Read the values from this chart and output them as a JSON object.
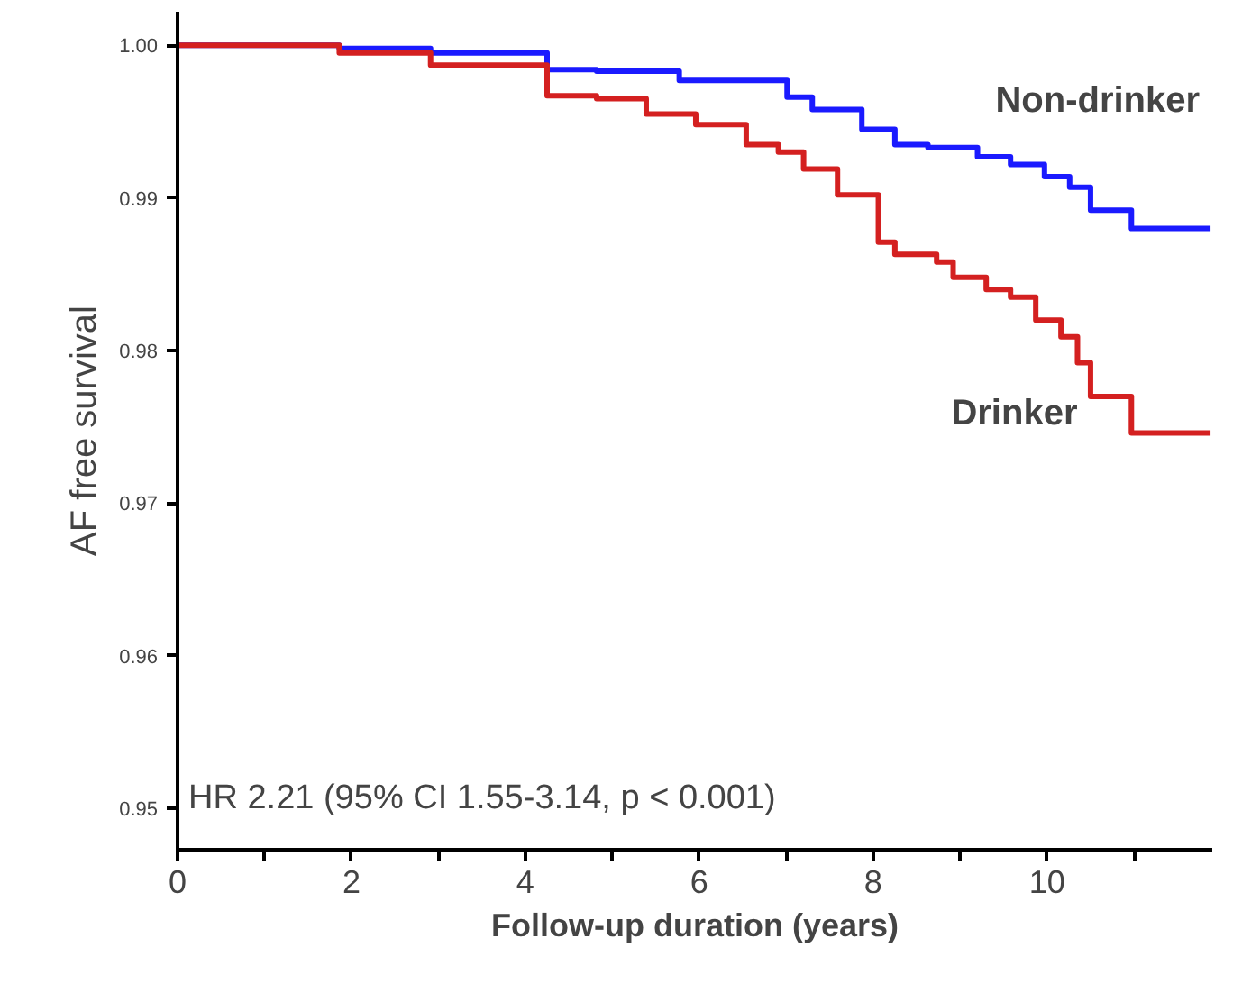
{
  "chart_data": {
    "type": "step",
    "xlabel": "Follow-up duration (years)",
    "ylabel": "AF free survival",
    "xlim": [
      0,
      11.9
    ],
    "ylim": [
      0.9473,
      1.0022
    ],
    "xticks": [
      0,
      {
        "value": 1,
        "label": null
      },
      2,
      {
        "value": 3,
        "label": null
      },
      4,
      {
        "value": 5,
        "label": null
      },
      6,
      {
        "value": 7,
        "label": null
      },
      8,
      {
        "value": 9,
        "label": null
      },
      10,
      {
        "value": 11,
        "label": null
      }
    ],
    "yticks": [
      {
        "value": 0.95,
        "label": "0.95"
      },
      {
        "value": 0.96,
        "label": "0.96"
      },
      {
        "value": 0.97,
        "label": "0.97"
      },
      {
        "value": 0.98,
        "label": "0.98"
      },
      {
        "value": 0.99,
        "label": "0.99"
      },
      {
        "value": 1.0,
        "label": "1.00"
      }
    ],
    "grid": false,
    "marker": "none",
    "line_style": "solid",
    "series": [
      {
        "name": "Non-drinker",
        "color": "#1a1aff",
        "x": [
          0.02,
          1.86,
          2.91,
          4.25,
          4.82,
          5.77,
          7.01,
          7.3,
          7.87,
          8.25,
          8.63,
          9.2,
          9.58,
          9.97,
          10.26,
          10.5,
          10.97,
          11.88
        ],
        "values": [
          1.0,
          0.9998,
          0.9995,
          0.9984,
          0.9983,
          0.9977,
          0.9966,
          0.9958,
          0.9945,
          0.9935,
          0.9933,
          0.9927,
          0.9922,
          0.9914,
          0.9907,
          0.9892,
          0.988,
          0.988
        ]
      },
      {
        "name": "Drinker",
        "color": "#d42020",
        "x": [
          0.02,
          1.86,
          2.91,
          4.25,
          4.82,
          5.39,
          5.96,
          6.54,
          6.91,
          7.2,
          7.59,
          8.06,
          8.25,
          8.73,
          8.92,
          9.3,
          9.58,
          9.87,
          10.16,
          10.35,
          10.5,
          10.97,
          11.88
        ],
        "values": [
          1.0,
          0.9995,
          0.9987,
          0.9967,
          0.9965,
          0.9955,
          0.9948,
          0.9935,
          0.993,
          0.9919,
          0.9902,
          0.9871,
          0.9863,
          0.9858,
          0.9848,
          0.984,
          0.9835,
          0.982,
          0.9809,
          0.9792,
          0.977,
          0.9746,
          0.9746
        ]
      }
    ],
    "annotations": [
      "HR 2.21 (95% CI 1.55-3.14, p < 0.001)"
    ]
  }
}
